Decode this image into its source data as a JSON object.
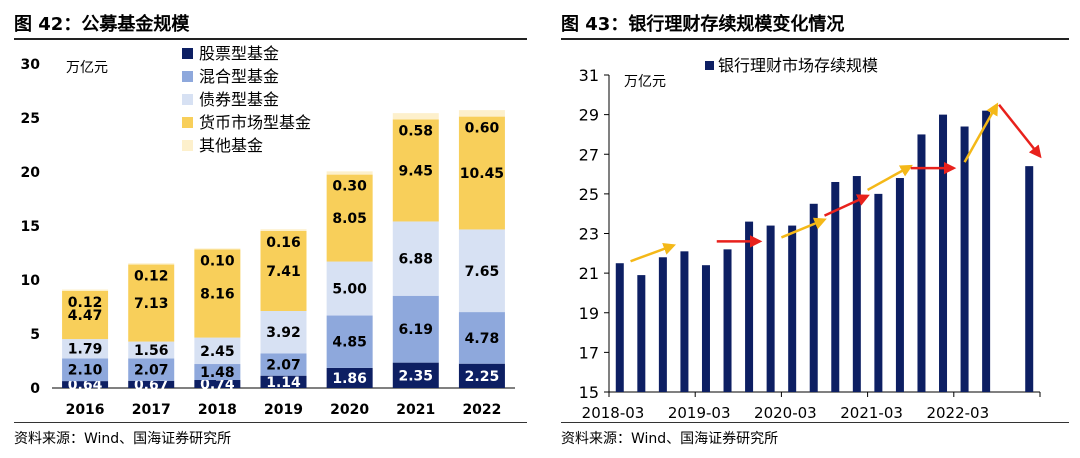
{
  "left_panel": {
    "title": "图 42：公募基金规模",
    "source": "资料来源：Wind、国海证券研究所"
  },
  "right_panel": {
    "title": "图 43：银行理财存续规模变化情况",
    "source": "资料来源：Wind、国海证券研究所"
  },
  "colors": {
    "stock": "#0d1f63",
    "hybrid": "#8ea8dc",
    "bond": "#d7e1f3",
    "money": "#f8cf5a",
    "other": "#fdf0cc",
    "bank_bar": "#0d1f63",
    "trend_up": "#f4b818",
    "trend_flat": "#e8211c"
  },
  "chart_data": [
    {
      "type": "bar",
      "stacked": true,
      "categories": [
        "2016",
        "2017",
        "2018",
        "2019",
        "2020",
        "2021",
        "2022"
      ],
      "unit_label": "万亿元",
      "ylim": [
        0,
        30
      ],
      "yticks": [
        0,
        5,
        10,
        15,
        20,
        25,
        30
      ],
      "legend_position": "top-center",
      "series": [
        {
          "name": "股票型基金",
          "key": "stock",
          "values": [
            0.64,
            0.67,
            0.74,
            1.14,
            1.86,
            2.35,
            2.25
          ]
        },
        {
          "name": "混合型基金",
          "key": "hybrid",
          "values": [
            2.1,
            2.07,
            1.48,
            2.07,
            4.85,
            6.19,
            4.78
          ]
        },
        {
          "name": "债券型基金",
          "key": "bond",
          "values": [
            1.79,
            1.56,
            2.45,
            3.92,
            5.0,
            6.88,
            7.65
          ]
        },
        {
          "name": "货币市场型基金",
          "key": "money",
          "values": [
            4.47,
            7.13,
            8.16,
            7.41,
            8.05,
            9.45,
            10.45
          ]
        },
        {
          "name": "其他基金",
          "key": "other",
          "values": [
            0.12,
            0.12,
            0.1,
            0.16,
            0.3,
            0.58,
            0.6
          ]
        }
      ],
      "labels": [
        [
          "0.64",
          "0.67",
          "0.74",
          "1.14",
          "1.86",
          "2.35",
          "2.25"
        ],
        [
          "2.10",
          "2.07",
          "1.48",
          "2.07",
          "4.85",
          "6.19",
          "4.78"
        ],
        [
          "1.79",
          "1.56",
          "2.45",
          "3.92",
          "5.00",
          "6.88",
          "7.65"
        ],
        [
          "4.47",
          "7.13",
          "8.16",
          "7.41",
          "8.05",
          "9.45",
          "10.45"
        ],
        [
          "0.12",
          "0.12",
          "0.10",
          "0.16",
          "0.30",
          "0.58",
          "0.60"
        ]
      ]
    },
    {
      "type": "bar",
      "unit_label": "万亿元",
      "legend_position": "top",
      "series_name": "银行理财市场存续规模",
      "ylim": [
        15,
        31
      ],
      "yticks": [
        15,
        17,
        19,
        21,
        23,
        25,
        27,
        29,
        31
      ],
      "x_tick_labels": [
        "2018-03",
        "2019-03",
        "2020-03",
        "2021-03",
        "2022-03"
      ],
      "x_tick_index": [
        0,
        4,
        8,
        12,
        16
      ],
      "months": [
        "2018-03",
        "2018-06",
        "2018-09",
        "2018-12",
        "2019-03",
        "2019-06",
        "2019-09",
        "2019-12",
        "2020-03",
        "2020-06",
        "2020-09",
        "2020-12",
        "2021-03",
        "2021-06",
        "2021-09",
        "2021-12",
        "2022-03",
        "2022-06",
        "2022-09",
        "2022-12"
      ],
      "values": [
        21.5,
        20.9,
        21.8,
        22.1,
        21.4,
        22.2,
        23.6,
        23.4,
        23.4,
        24.5,
        25.6,
        25.9,
        25.0,
        25.8,
        28.0,
        29.0,
        28.4,
        29.2,
        null,
        26.4
      ],
      "trend_arrows": [
        {
          "from": [
            0.5,
            21.6
          ],
          "to": [
            2.5,
            22.4
          ],
          "color": "trend_up"
        },
        {
          "from": [
            4.5,
            22.6
          ],
          "to": [
            6.5,
            22.6
          ],
          "color": "trend_flat"
        },
        {
          "from": [
            7.5,
            22.8
          ],
          "to": [
            9.5,
            23.7
          ],
          "color": "trend_up"
        },
        {
          "from": [
            9.5,
            23.9
          ],
          "to": [
            11.5,
            24.9
          ],
          "color": "trend_flat"
        },
        {
          "from": [
            11.5,
            25.2
          ],
          "to": [
            13.5,
            26.4
          ],
          "color": "trend_up"
        },
        {
          "from": [
            13.5,
            26.3
          ],
          "to": [
            15.5,
            26.3
          ],
          "color": "trend_flat"
        },
        {
          "from": [
            16.0,
            26.6
          ],
          "to": [
            17.5,
            29.5
          ],
          "color": "trend_up"
        },
        {
          "from": [
            17.6,
            29.5
          ],
          "to": [
            19.5,
            26.9
          ],
          "color": "trend_flat"
        }
      ]
    }
  ]
}
